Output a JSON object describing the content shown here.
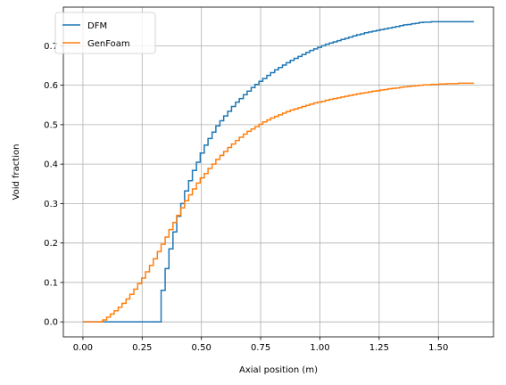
{
  "chart_data": {
    "type": "line",
    "step": true,
    "xlabel": "Axial position (m)",
    "ylabel": "Void fraction",
    "xlim": [
      -0.0825,
      1.7325
    ],
    "ylim": [
      -0.038,
      0.798
    ],
    "xticks": [
      0.0,
      0.25,
      0.5,
      0.75,
      1.0,
      1.25,
      1.5
    ],
    "xtick_labels": [
      "0.00",
      "0.25",
      "0.50",
      "0.75",
      "1.00",
      "1.25",
      "1.50"
    ],
    "yticks": [
      0.0,
      0.1,
      0.2,
      0.3,
      0.4,
      0.5,
      0.6,
      0.7
    ],
    "ytick_labels": [
      "0.0",
      "0.1",
      "0.2",
      "0.3",
      "0.4",
      "0.5",
      "0.6",
      "0.7"
    ],
    "grid": true,
    "legend_position": "upper-left",
    "series": [
      {
        "name": "DFM",
        "color": "#1f77b4",
        "x": [
          0.0,
          0.33,
          0.347,
          0.363,
          0.38,
          0.396,
          0.413,
          0.429,
          0.446,
          0.462,
          0.479,
          0.495,
          0.512,
          0.528,
          0.545,
          0.561,
          0.578,
          0.594,
          0.611,
          0.627,
          0.644,
          0.66,
          0.677,
          0.693,
          0.71,
          0.726,
          0.743,
          0.759,
          0.776,
          0.792,
          0.809,
          0.825,
          0.842,
          0.858,
          0.875,
          0.891,
          0.908,
          0.924,
          0.941,
          0.957,
          0.974,
          0.99,
          1.007,
          1.023,
          1.04,
          1.056,
          1.073,
          1.089,
          1.106,
          1.122,
          1.139,
          1.155,
          1.172,
          1.188,
          1.205,
          1.221,
          1.238,
          1.254,
          1.271,
          1.287,
          1.304,
          1.32,
          1.337,
          1.353,
          1.37,
          1.386,
          1.403,
          1.419,
          1.436,
          1.452,
          1.469,
          1.485,
          1.502,
          1.518,
          1.535,
          1.551,
          1.568,
          1.584,
          1.601,
          1.617,
          1.634,
          1.65
        ],
        "y": [
          0.0,
          0.08,
          0.135,
          0.185,
          0.228,
          0.268,
          0.3,
          0.332,
          0.358,
          0.384,
          0.405,
          0.428,
          0.448,
          0.465,
          0.481,
          0.497,
          0.51,
          0.522,
          0.534,
          0.546,
          0.557,
          0.566,
          0.576,
          0.585,
          0.594,
          0.602,
          0.61,
          0.617,
          0.625,
          0.632,
          0.639,
          0.645,
          0.651,
          0.657,
          0.663,
          0.668,
          0.673,
          0.678,
          0.683,
          0.688,
          0.692,
          0.696,
          0.7,
          0.704,
          0.707,
          0.71,
          0.713,
          0.716,
          0.719,
          0.722,
          0.725,
          0.728,
          0.73,
          0.733,
          0.735,
          0.737,
          0.739,
          0.741,
          0.743,
          0.745,
          0.747,
          0.749,
          0.751,
          0.753,
          0.754,
          0.756,
          0.757,
          0.759,
          0.76,
          0.76,
          0.761,
          0.761,
          0.761,
          0.761,
          0.761,
          0.761,
          0.761,
          0.761,
          0.761,
          0.761,
          0.761,
          0.761
        ]
      },
      {
        "name": "GenFoam",
        "color": "#ff7f0e",
        "x": [
          0.0,
          0.083,
          0.1,
          0.116,
          0.132,
          0.149,
          0.165,
          0.182,
          0.198,
          0.215,
          0.231,
          0.248,
          0.264,
          0.281,
          0.297,
          0.314,
          0.33,
          0.347,
          0.363,
          0.38,
          0.396,
          0.413,
          0.429,
          0.446,
          0.462,
          0.479,
          0.495,
          0.512,
          0.528,
          0.545,
          0.561,
          0.578,
          0.594,
          0.611,
          0.627,
          0.644,
          0.66,
          0.677,
          0.693,
          0.71,
          0.726,
          0.743,
          0.759,
          0.776,
          0.792,
          0.809,
          0.825,
          0.842,
          0.858,
          0.875,
          0.891,
          0.908,
          0.924,
          0.941,
          0.957,
          0.974,
          0.99,
          1.007,
          1.023,
          1.04,
          1.056,
          1.073,
          1.089,
          1.106,
          1.122,
          1.139,
          1.155,
          1.172,
          1.188,
          1.205,
          1.221,
          1.238,
          1.254,
          1.271,
          1.287,
          1.304,
          1.32,
          1.337,
          1.353,
          1.37,
          1.386,
          1.403,
          1.419,
          1.436,
          1.452,
          1.469,
          1.485,
          1.502,
          1.518,
          1.535,
          1.551,
          1.568,
          1.584,
          1.601,
          1.617,
          1.634,
          1.65
        ],
        "y": [
          0.0,
          0.005,
          0.012,
          0.02,
          0.028,
          0.037,
          0.047,
          0.058,
          0.07,
          0.083,
          0.097,
          0.111,
          0.127,
          0.143,
          0.16,
          0.178,
          0.197,
          0.215,
          0.234,
          0.252,
          0.27,
          0.289,
          0.307,
          0.322,
          0.337,
          0.352,
          0.365,
          0.376,
          0.389,
          0.4,
          0.412,
          0.422,
          0.432,
          0.442,
          0.451,
          0.46,
          0.468,
          0.476,
          0.483,
          0.489,
          0.495,
          0.501,
          0.507,
          0.512,
          0.517,
          0.521,
          0.525,
          0.529,
          0.533,
          0.537,
          0.54,
          0.543,
          0.546,
          0.549,
          0.552,
          0.555,
          0.557,
          0.559,
          0.562,
          0.564,
          0.566,
          0.568,
          0.57,
          0.572,
          0.574,
          0.576,
          0.578,
          0.58,
          0.581,
          0.583,
          0.585,
          0.586,
          0.588,
          0.589,
          0.591,
          0.592,
          0.593,
          0.595,
          0.596,
          0.597,
          0.598,
          0.599,
          0.6,
          0.601,
          0.601,
          0.602,
          0.602,
          0.603,
          0.603,
          0.604,
          0.604,
          0.604,
          0.605,
          0.605,
          0.605,
          0.605,
          0.605
        ]
      }
    ]
  }
}
